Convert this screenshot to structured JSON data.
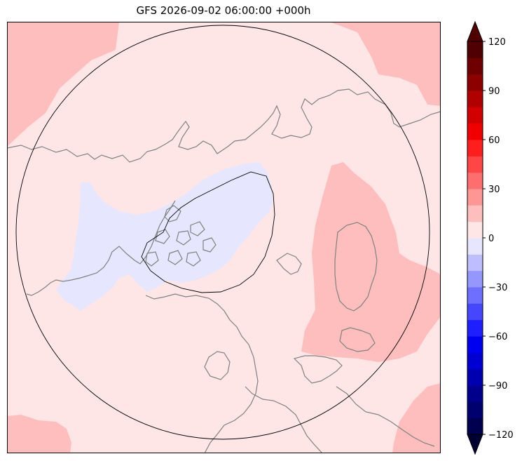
{
  "title": "GFS 2026-09-02 06:00:00 +000h",
  "map": {
    "projection": "north-polar-stereographic",
    "background_color": "#ffe6e6",
    "coastline_color": "#808080",
    "boundary_color": "#000000"
  },
  "colorbar": {
    "min": -120,
    "max": 120,
    "step": 10,
    "extend": "both",
    "ticks": [
      {
        "value": -120,
        "label": "−120"
      },
      {
        "value": -90,
        "label": "−90"
      },
      {
        "value": -60,
        "label": "−60"
      },
      {
        "value": -30,
        "label": "−30"
      },
      {
        "value": 0,
        "label": "0"
      },
      {
        "value": 30,
        "label": "30"
      },
      {
        "value": 60,
        "label": "60"
      },
      {
        "value": 90,
        "label": "90"
      },
      {
        "value": 120,
        "label": "120"
      }
    ],
    "colors": [
      "#000050",
      "#00006e",
      "#00008c",
      "#0000b0",
      "#0000d2",
      "#0000f0",
      "#1e1eff",
      "#4646ff",
      "#6e6eff",
      "#9696ff",
      "#bebeff",
      "#e6e6ff",
      "#ffe6e6",
      "#ffbebe",
      "#ff9696",
      "#ff6e6e",
      "#ff4646",
      "#ff1e1e",
      "#f00000",
      "#d20000",
      "#b00000",
      "#8c0000",
      "#6e0000",
      "#500000"
    ],
    "under_color": "#000032",
    "over_color": "#500000"
  }
}
